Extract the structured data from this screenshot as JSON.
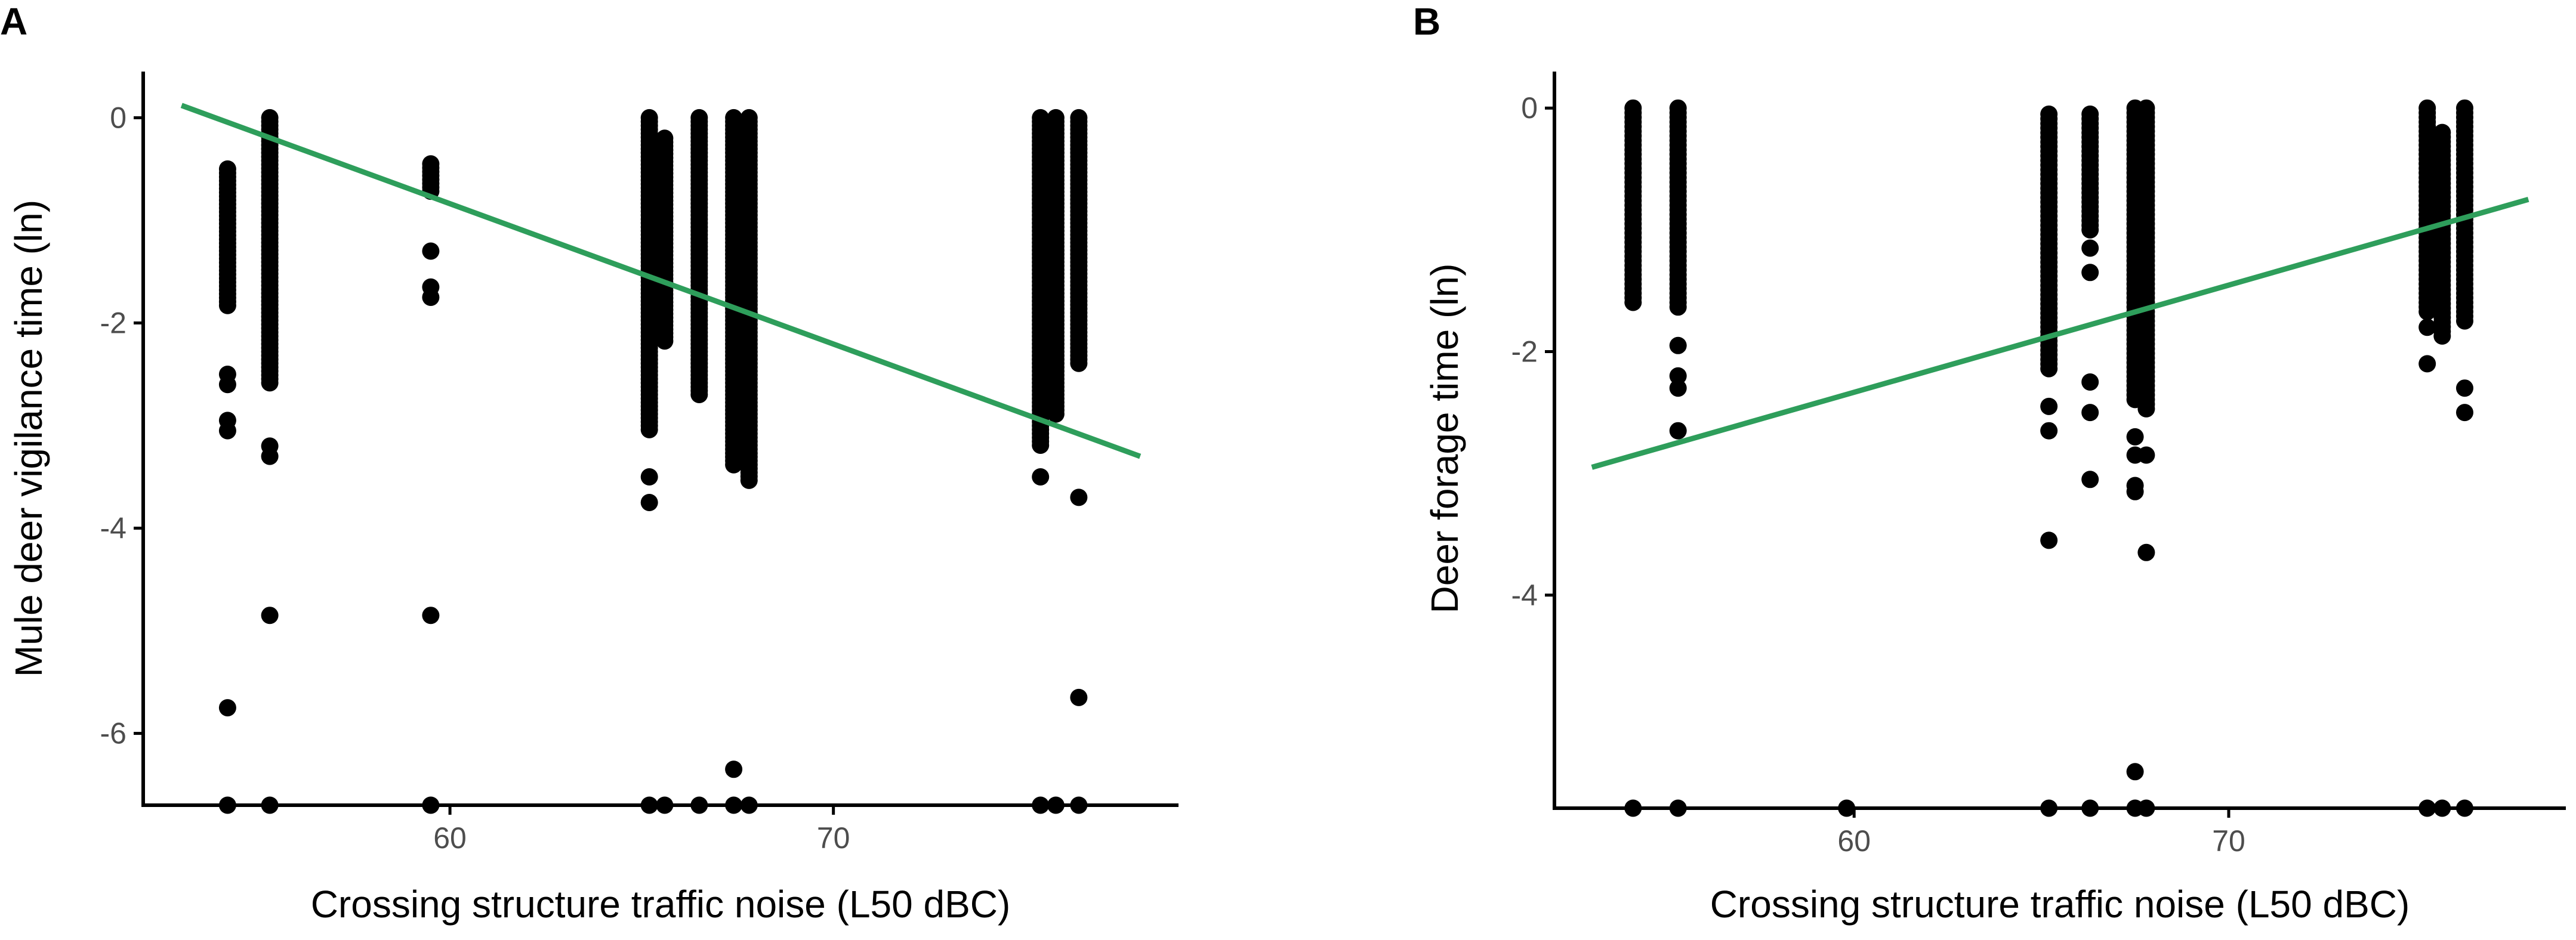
{
  "colors": {
    "fit_line": "#2e9e5b",
    "points": "#000000",
    "axis": "#000000",
    "tick_text": "#4d4d4d"
  },
  "chart_data": [
    {
      "type": "scatter",
      "panel_label": "A",
      "title": "",
      "xlabel": "Crossing structure traffic noise (L50 dBC)",
      "ylabel": "Mule deer vigilance time (ln)",
      "xlim": [
        52,
        79
      ],
      "ylim": [
        -6.7,
        0.45
      ],
      "x_ticks": [
        60,
        70
      ],
      "y_ticks": [
        0,
        -2,
        -4,
        -6
      ],
      "x_tick_labels": [
        "60",
        "70"
      ],
      "y_tick_labels": [
        "0",
        "-2",
        "-4",
        "-6"
      ],
      "fit_line": {
        "x": [
          53,
          78
        ],
        "y": [
          0.12,
          -3.3
        ]
      },
      "point_columns": [
        {
          "x": 54.2,
          "y_top": -0.5,
          "y_bottom": -1.85,
          "extra_y": [
            -2.5,
            -2.6,
            -2.95,
            -3.05,
            -5.75,
            -6.7
          ]
        },
        {
          "x": 55.3,
          "y_top": 0.0,
          "y_bottom": -2.6,
          "extra_y": [
            -3.2,
            -3.3,
            -4.85,
            -6.7
          ]
        },
        {
          "x": 59.5,
          "y_top": -0.45,
          "y_bottom": -0.75,
          "extra_y": [
            -1.3,
            -1.65,
            -1.75,
            -4.85,
            -6.7
          ]
        },
        {
          "x": 65.2,
          "y_top": 0.0,
          "y_bottom": -3.05,
          "extra_y": [
            -3.5,
            -3.75,
            -6.7
          ]
        },
        {
          "x": 65.6,
          "y_top": -0.2,
          "y_bottom": -2.2,
          "extra_y": [
            -6.7
          ]
        },
        {
          "x": 66.5,
          "y_top": 0.0,
          "y_bottom": -2.7,
          "extra_y": [
            -6.7
          ]
        },
        {
          "x": 67.4,
          "y_top": 0.0,
          "y_bottom": -3.4,
          "extra_y": [
            -6.35,
            -6.7
          ]
        },
        {
          "x": 67.8,
          "y_top": 0.0,
          "y_bottom": -3.55,
          "extra_y": [
            -6.7
          ]
        },
        {
          "x": 75.4,
          "y_top": 0.0,
          "y_bottom": -3.2,
          "extra_y": [
            -3.5,
            -6.7
          ]
        },
        {
          "x": 75.8,
          "y_top": 0.0,
          "y_bottom": -2.9,
          "extra_y": [
            -6.7
          ]
        },
        {
          "x": 76.4,
          "y_top": 0.0,
          "y_bottom": -2.4,
          "extra_y": [
            -3.7,
            -5.65,
            -6.7
          ]
        }
      ]
    },
    {
      "type": "scatter",
      "panel_label": "B",
      "title": "",
      "xlabel": "Crossing structure traffic noise (L50 dBC)",
      "ylabel": "Deer forage time (ln)",
      "xlim": [
        52,
        79
      ],
      "ylim": [
        -5.75,
        0.3
      ],
      "x_ticks": [
        60,
        70
      ],
      "y_ticks": [
        0,
        -2,
        -4
      ],
      "x_tick_labels": [
        "60",
        "70"
      ],
      "y_tick_labels": [
        "0",
        "-2",
        "-4"
      ],
      "fit_line": {
        "x": [
          53,
          78
        ],
        "y": [
          -2.95,
          -0.75
        ]
      },
      "point_columns": [
        {
          "x": 54.1,
          "y_top": 0.0,
          "y_bottom": -1.6,
          "extra_y": [
            -5.75
          ]
        },
        {
          "x": 55.3,
          "y_top": 0.0,
          "y_bottom": -1.65,
          "extra_y": [
            -1.95,
            -2.2,
            -2.3,
            -2.65,
            -5.75
          ]
        },
        {
          "x": 59.8,
          "y_top": -5.75,
          "y_bottom": -5.75,
          "extra_y": []
        },
        {
          "x": 65.2,
          "y_top": -0.05,
          "y_bottom": -2.15,
          "extra_y": [
            -2.45,
            -2.65,
            -3.55,
            -5.75
          ]
        },
        {
          "x": 66.3,
          "y_top": -0.05,
          "y_bottom": -1.0,
          "extra_y": [
            -1.15,
            -1.35,
            -2.25,
            -2.5,
            -3.05,
            -5.75
          ]
        },
        {
          "x": 67.5,
          "y_top": 0.0,
          "y_bottom": -2.4,
          "extra_y": [
            -2.7,
            -2.85,
            -3.1,
            -3.15,
            -5.45,
            -5.75
          ]
        },
        {
          "x": 67.8,
          "y_top": 0.0,
          "y_bottom": -2.5,
          "extra_y": [
            -2.85,
            -3.65,
            -5.75
          ]
        },
        {
          "x": 75.3,
          "y_top": 0.0,
          "y_bottom": -1.7,
          "extra_y": [
            -1.8,
            -2.1,
            -5.75
          ]
        },
        {
          "x": 75.7,
          "y_top": -0.2,
          "y_bottom": -1.9,
          "extra_y": [
            -5.75
          ]
        },
        {
          "x": 76.3,
          "y_top": 0.0,
          "y_bottom": -1.75,
          "extra_y": [
            -2.3,
            -2.5,
            -5.75
          ]
        }
      ]
    }
  ]
}
